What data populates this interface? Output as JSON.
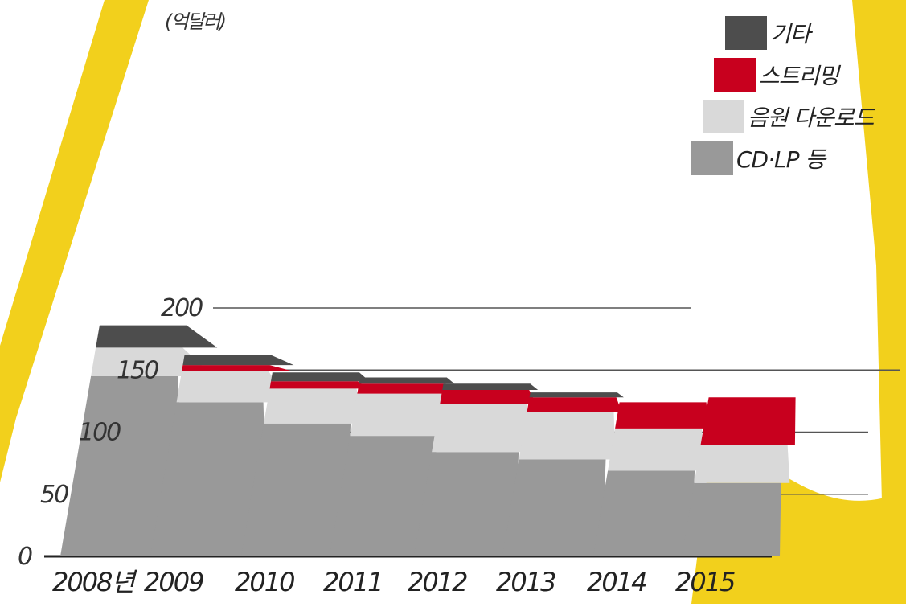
{
  "chart_data": {
    "type": "bar",
    "stacked": true,
    "unit": "(억달러)",
    "categories": [
      "2008년",
      "2009",
      "2010",
      "2011",
      "2012",
      "2013",
      "2014",
      "2015"
    ],
    "y_ticks": [
      "0",
      "50",
      "100",
      "150",
      "200"
    ],
    "ylim": [
      0,
      200
    ],
    "grid": true,
    "legend_position": "top-right",
    "series": [
      {
        "name": "CD·LP 등",
        "color": "#999999",
        "values": [
          145,
          124,
          107,
          97,
          84,
          78,
          69,
          59
        ]
      },
      {
        "name": "음원 다운로드",
        "color": "#d9d9d9",
        "values": [
          23,
          25,
          28,
          34,
          39,
          38,
          34,
          31
        ]
      },
      {
        "name": "스트리밍",
        "color": "#c8001e",
        "values": [
          0,
          5,
          6,
          8,
          11,
          12,
          21,
          38
        ]
      },
      {
        "name": "기타",
        "color": "#4d4d4d",
        "values": [
          18,
          8,
          7,
          5,
          5,
          4,
          0,
          0
        ]
      }
    ],
    "background_accent": "#f2d01c"
  }
}
